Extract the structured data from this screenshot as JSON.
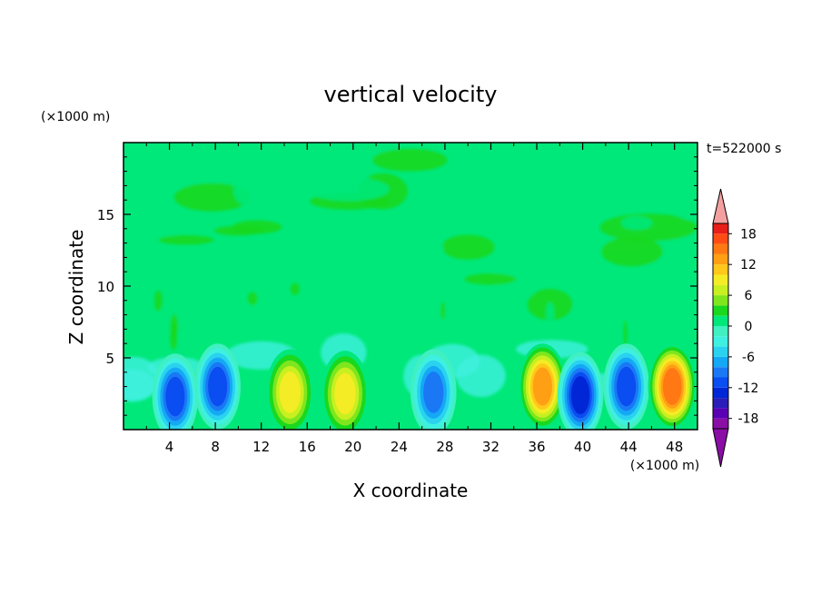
{
  "chart_data": {
    "type": "heatmap",
    "title": "vertical velocity",
    "xlabel": "X coordinate",
    "ylabel": "Z coordinate",
    "x_unit": "(×1000 m)",
    "z_unit": "(×1000 m)",
    "time_label": "t=522000 s",
    "xlim": [
      0,
      50
    ],
    "zlim": [
      0,
      20
    ],
    "x_ticks": [
      4,
      8,
      12,
      16,
      20,
      24,
      28,
      32,
      36,
      40,
      44,
      48
    ],
    "z_ticks": [
      5,
      10,
      15
    ],
    "colorbar": {
      "levels": [
        -20,
        -18,
        -16,
        -14,
        -12,
        -10,
        -8,
        -6,
        -4,
        -2,
        0,
        2,
        4,
        6,
        8,
        10,
        12,
        14,
        16,
        18,
        20
      ],
      "tick_labels": [
        18,
        12,
        6,
        0,
        -6,
        -12,
        -18
      ],
      "colors": [
        "#8a0ea6",
        "#5a00b4",
        "#2a1eb8",
        "#0026d6",
        "#0a4df0",
        "#1a78f5",
        "#14a8f5",
        "#2ad2f0",
        "#3ef0e0",
        "#40f0c0",
        "#00e87a",
        "#19d81e",
        "#7fe61e",
        "#c8f020",
        "#f4ec24",
        "#ffc81a",
        "#ff9f14",
        "#ff7814",
        "#ff4c14",
        "#e81e1a"
      ],
      "over_color": "#f5a0a0",
      "under_color": "#8a0ea6"
    },
    "features": [
      {
        "x": 4.5,
        "z": 2.3,
        "w": -12
      },
      {
        "x": 8.2,
        "z": 3.0,
        "w": -12
      },
      {
        "x": 14.5,
        "z": 2.6,
        "w": 10
      },
      {
        "x": 19.3,
        "z": 2.5,
        "w": 10
      },
      {
        "x": 27.0,
        "z": 2.6,
        "w": -10
      },
      {
        "x": 36.5,
        "z": 3.0,
        "w": 14
      },
      {
        "x": 39.8,
        "z": 2.4,
        "w": -14
      },
      {
        "x": 43.8,
        "z": 3.0,
        "w": -12
      },
      {
        "x": 47.8,
        "z": 3.0,
        "w": 16
      }
    ]
  }
}
